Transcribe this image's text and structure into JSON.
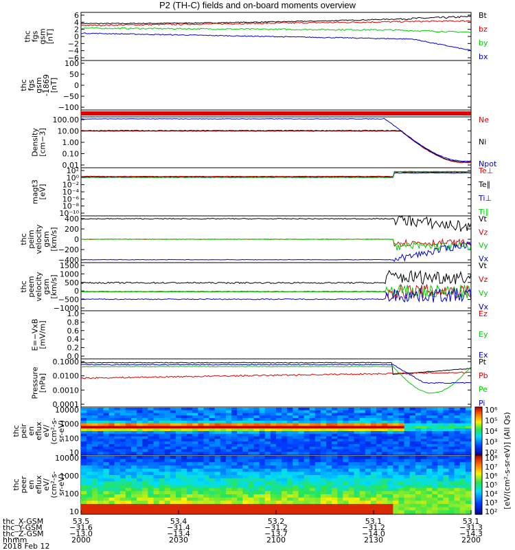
{
  "title": "P2 (TH-C) fields and on-board moments overview",
  "colors": {
    "black": "#000000",
    "red": "#dd0000",
    "green": "#00cc00",
    "blue": "#0000cc"
  },
  "chart_data": [
    {
      "type": "line",
      "ylabel": [
        "thc",
        "fgs",
        "gsm",
        "[nT]"
      ],
      "yticks": [
        "6",
        "4",
        "2",
        "0",
        "−2",
        "−4",
        "−6"
      ],
      "ylim": [
        -6,
        6.5
      ],
      "legend": [
        {
          "name": "Bt",
          "color": "black"
        },
        {
          "name": "bz",
          "color": "red"
        },
        {
          "name": "by",
          "color": "green"
        },
        {
          "name": "bx",
          "color": "blue"
        }
      ]
    },
    {
      "type": "line",
      "ylabel": [
        "thc",
        "fgs",
        "gsm",
        "-1869",
        "[nT]"
      ],
      "yticks": [
        "100",
        "50",
        "0",
        "−50",
        "−100"
      ],
      "ylim": [
        -130,
        100
      ],
      "legend": []
    },
    {
      "type": "bar",
      "ylabel": [],
      "yticks": [],
      "legend": []
    },
    {
      "type": "line",
      "ylabel": [
        "Density",
        "[cm−3]"
      ],
      "yticks": [
        "100.00",
        "10.00",
        "1.00",
        "0.10",
        "0.01"
      ],
      "legend": [
        {
          "name": "Ne",
          "color": "red"
        },
        {
          "name": "Ni",
          "color": "black"
        },
        {
          "name": "Npot",
          "color": "blue"
        }
      ]
    },
    {
      "type": "line",
      "ylabel": [
        "magt3",
        "[eV]"
      ],
      "yticks": [
        "10²",
        "10⁰",
        "10⁻²",
        "10⁻⁴",
        "10⁻⁶",
        "10⁻⁸",
        "10⁻¹⁰"
      ],
      "legend": [
        {
          "name": "Te⊥",
          "color": "red"
        },
        {
          "name": "Te∥",
          "color": "black"
        },
        {
          "name": "Ti⊥",
          "color": "blue"
        },
        {
          "name": "Ti∥",
          "color": "green"
        }
      ]
    },
    {
      "type": "line",
      "ylabel": [
        "thc",
        "peim",
        "velocity",
        "gsm",
        "[km/s]"
      ],
      "yticks": [
        "400",
        "200",
        "0",
        "−200",
        "−400"
      ],
      "ylim": [
        -400,
        400
      ],
      "legend": [
        {
          "name": "Vt",
          "color": "black"
        },
        {
          "name": "Vz",
          "color": "red"
        },
        {
          "name": "Vy",
          "color": "green"
        },
        {
          "name": "Vx",
          "color": "blue"
        }
      ]
    },
    {
      "type": "line",
      "ylabel": [
        "thc",
        "peem",
        "velocity",
        "gsm",
        "[km/s]"
      ],
      "yticks": [
        "1500",
        "1000",
        "500",
        "0",
        "−500",
        "−1000"
      ],
      "ylim": [
        -1000,
        1500
      ],
      "legend": [
        {
          "name": "Vt",
          "color": "black"
        },
        {
          "name": "Vz",
          "color": "red"
        },
        {
          "name": "Vy",
          "color": "green"
        },
        {
          "name": "Vx",
          "color": "blue"
        }
      ]
    },
    {
      "type": "line",
      "ylabel": [
        "E=−VxB",
        "[mV/m]"
      ],
      "yticks": [
        "1.0",
        "0.8",
        "0.6",
        "0.4",
        "0.2",
        "0.0"
      ],
      "ylim": [
        0,
        1
      ],
      "legend": [
        {
          "name": "Ez",
          "color": "red"
        },
        {
          "name": "Ey",
          "color": "green"
        },
        {
          "name": "Ex",
          "color": "blue"
        }
      ]
    },
    {
      "type": "line",
      "ylabel": [
        "Pressure",
        "[nPa]"
      ],
      "yticks": [
        "0.1000",
        "0.0100",
        "0.0010",
        "0.0001"
      ],
      "legend": [
        {
          "name": "Pt",
          "color": "black"
        },
        {
          "name": "Pb",
          "color": "red"
        },
        {
          "name": "Pe",
          "color": "green"
        },
        {
          "name": "Pi",
          "color": "blue"
        }
      ]
    },
    {
      "type": "heatmap",
      "ylabel": [
        "thc",
        "peir",
        "en",
        "eflux",
        "eV/",
        "(cm²-s-",
        "sr-eV)"
      ],
      "yticks": [
        "10000",
        "1000",
        "100",
        "10"
      ],
      "legend": []
    },
    {
      "type": "heatmap",
      "ylabel": [
        "thc",
        "peer",
        "en",
        "eflux",
        "eV/",
        "(cm²-s-",
        "sr-eV)"
      ],
      "yticks": [
        "10000",
        "1000",
        "100",
        "10"
      ],
      "legend": []
    }
  ],
  "colorbar": {
    "upper_ticks": [
      "10⁶",
      "10⁵",
      "10⁴",
      "10³",
      "10²"
    ],
    "lower_ticks": [
      "10⁸",
      "10⁷",
      "10⁶",
      "10⁵",
      "10⁴",
      "10³",
      "10²"
    ],
    "label": "[eV/(cm²-s-sr-eV)] (All Qs)"
  },
  "footer": {
    "rows": [
      {
        "label": "thc_X-GSM",
        "values": [
          "53.5",
          "53.4",
          "53.2",
          "53.1",
          "53.1"
        ]
      },
      {
        "label": "thc_Y-GSM",
        "values": [
          "−31.6",
          "−31.4",
          "−31.2",
          "−31.2",
          "−31.3"
        ]
      },
      {
        "label": "thc_Z-GSM",
        "values": [
          "−13.0",
          "−13.4",
          "−13.7",
          "−14.0",
          "−14.3"
        ]
      },
      {
        "label": "hhmm",
        "values": [
          "2000",
          "2030",
          "2100",
          "2130",
          "2200"
        ]
      }
    ],
    "date": "2018 Feb 12"
  }
}
